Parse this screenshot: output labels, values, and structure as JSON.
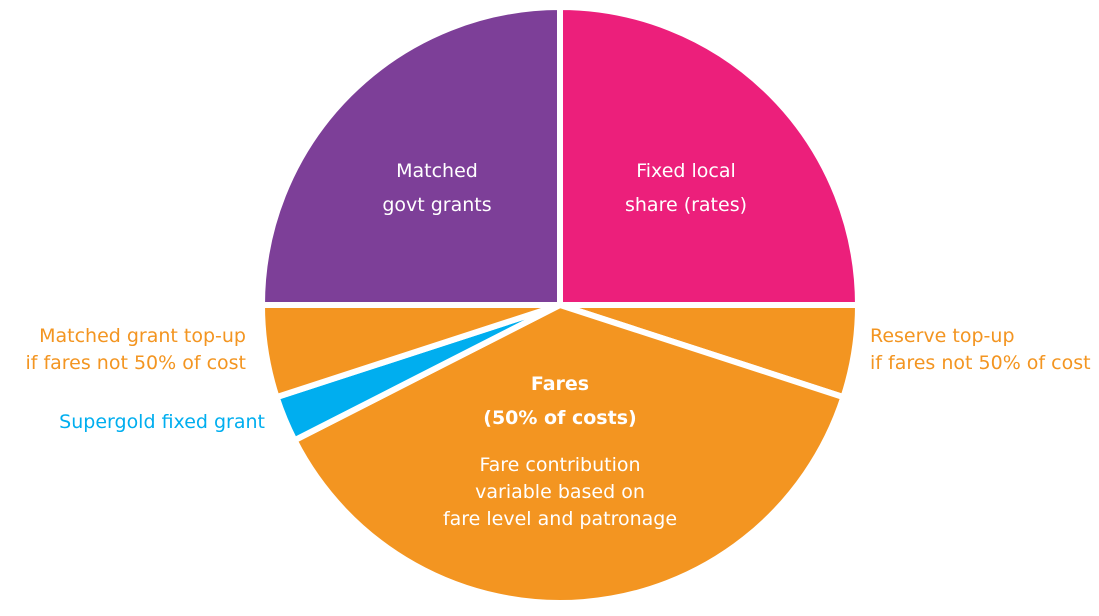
{
  "chart_data": {
    "type": "pie",
    "categories": [
      "Fixed local\nshare (rates)",
      "Reserve top-up\nif fares not 50% of cost",
      "Fares\n(50% of costs)",
      "Supergold fixed grant",
      "Matched grant top-up\nif fares not 50% of cost",
      "Matched\ngovt grants"
    ],
    "values": [
      25,
      5,
      37.5,
      2.5,
      5,
      25
    ],
    "colors": [
      "#ec1f7b",
      "#f39521",
      "#f39521",
      "#00aeef",
      "#f39521",
      "#7d3f98"
    ],
    "annotations": [
      "Fare contribution\nvariable based on\nfare level and patronage"
    ]
  }
}
